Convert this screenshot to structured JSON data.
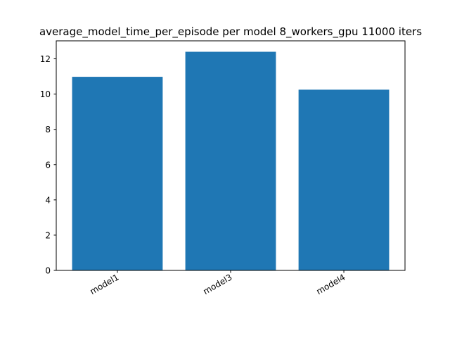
{
  "chart_data": {
    "type": "bar",
    "title": "average_model_time_per_episode per model 8_workers_gpu 11000 iters",
    "xlabel": "",
    "ylabel": "",
    "categories": [
      "model1",
      "model3",
      "model4"
    ],
    "values": [
      10.98,
      12.4,
      10.25
    ],
    "ylim": [
      0,
      13.02
    ],
    "yticks": [
      0,
      2,
      4,
      6,
      8,
      10,
      12
    ],
    "bar_color": "#1f77b4",
    "grid": false,
    "legend": false
  }
}
